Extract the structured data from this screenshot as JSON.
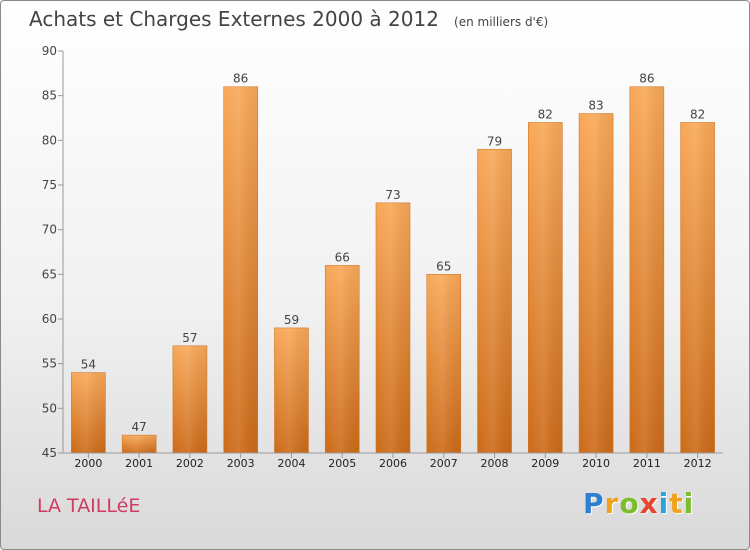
{
  "title": {
    "main": "Achats et Charges Externes 2000 à 2012",
    "unit": "(en milliers d'€)"
  },
  "location": "LA TAILLéE",
  "brand": {
    "name": "Proxiti"
  },
  "chart_data": {
    "type": "bar",
    "title": "Achats et Charges Externes 2000 à 2012",
    "subtitle": "(en milliers d'€)",
    "xlabel": "",
    "ylabel": "",
    "categories": [
      "2000",
      "2001",
      "2002",
      "2003",
      "2004",
      "2005",
      "2006",
      "2007",
      "2008",
      "2009",
      "2010",
      "2011",
      "2012"
    ],
    "values": [
      54,
      47,
      57,
      86,
      59,
      66,
      73,
      65,
      79,
      82,
      83,
      86,
      82
    ],
    "ylim": [
      45,
      90
    ],
    "yticks": [
      45,
      50,
      55,
      60,
      65,
      70,
      75,
      80,
      85,
      90
    ],
    "grid": false,
    "bar_color": "#f0923a",
    "data_labels": true
  }
}
